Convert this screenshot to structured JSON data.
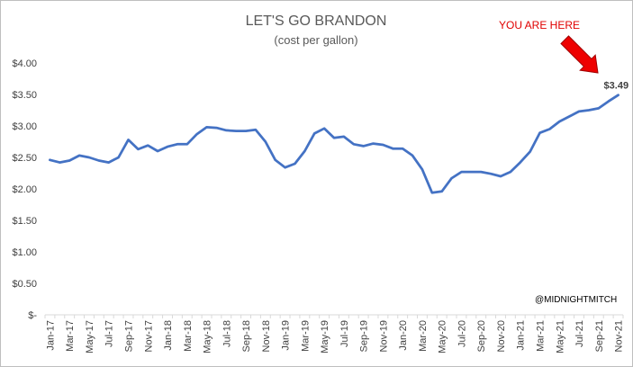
{
  "chart_data": {
    "type": "line",
    "title": "LET'S GO BRANDON",
    "subtitle": "(cost per gallon)",
    "xlabel": "",
    "ylabel": "",
    "ylim": [
      0,
      4.0
    ],
    "y_ticks": [
      "$-",
      "$0.50",
      "$1.00",
      "$1.50",
      "$2.00",
      "$2.50",
      "$3.00",
      "$3.50",
      "$4.00"
    ],
    "y_tick_values": [
      0,
      0.5,
      1.0,
      1.5,
      2.0,
      2.5,
      3.0,
      3.5,
      4.0
    ],
    "grid": false,
    "line_color": "#4472c4",
    "x": [
      "Jan-17",
      "Feb-17",
      "Mar-17",
      "Apr-17",
      "May-17",
      "Jun-17",
      "Jul-17",
      "Aug-17",
      "Sep-17",
      "Oct-17",
      "Nov-17",
      "Dec-17",
      "Jan-18",
      "Feb-18",
      "Mar-18",
      "Apr-18",
      "May-18",
      "Jun-18",
      "Jul-18",
      "Aug-18",
      "Sep-18",
      "Oct-18",
      "Nov-18",
      "Dec-18",
      "Jan-19",
      "Feb-19",
      "Mar-19",
      "Apr-19",
      "May-19",
      "Jun-19",
      "Jul-19",
      "Aug-19",
      "Sep-19",
      "Oct-19",
      "Nov-19",
      "Dec-19",
      "Jan-20",
      "Feb-20",
      "Mar-20",
      "Apr-20",
      "May-20",
      "Jun-20",
      "Jul-20",
      "Aug-20",
      "Sep-20",
      "Oct-20",
      "Nov-20",
      "Dec-20",
      "Jan-21",
      "Feb-21",
      "Mar-21",
      "Apr-21",
      "May-21",
      "Jun-21",
      "Jul-21",
      "Aug-21",
      "Sep-21",
      "Oct-21",
      "Nov-21"
    ],
    "x_tick_labels": [
      "Jan-17",
      "Mar-17",
      "May-17",
      "Jul-17",
      "Sep-17",
      "Nov-17",
      "Jan-18",
      "Mar-18",
      "May-18",
      "Jul-18",
      "Sep-18",
      "Nov-18",
      "Jan-19",
      "Mar-19",
      "May-19",
      "Jul-19",
      "Sep-19",
      "Nov-19",
      "Jan-20",
      "Mar-20",
      "May-20",
      "Jul-20",
      "Sep-20",
      "Nov-20",
      "Jan-21",
      "Mar-21",
      "May-21",
      "Jul-21",
      "Sep-21",
      "Nov-21"
    ],
    "series": [
      {
        "values": [
          2.46,
          2.42,
          2.45,
          2.53,
          2.5,
          2.45,
          2.42,
          2.5,
          2.78,
          2.63,
          2.69,
          2.6,
          2.67,
          2.71,
          2.71,
          2.87,
          2.98,
          2.97,
          2.93,
          2.92,
          2.92,
          2.94,
          2.75,
          2.46,
          2.34,
          2.4,
          2.6,
          2.88,
          2.96,
          2.81,
          2.83,
          2.71,
          2.68,
          2.72,
          2.7,
          2.64,
          2.64,
          2.53,
          2.31,
          1.94,
          1.96,
          2.17,
          2.27,
          2.27,
          2.27,
          2.24,
          2.2,
          2.27,
          2.42,
          2.59,
          2.89,
          2.95,
          3.07,
          3.15,
          3.23,
          3.25,
          3.28,
          3.39,
          3.49
        ]
      }
    ],
    "annotations": {
      "callout_text": "YOU ARE HERE",
      "callout_color": "#e00000",
      "last_value_label": "$3.49",
      "credit": "@MIDNIGHTMITCH"
    }
  }
}
